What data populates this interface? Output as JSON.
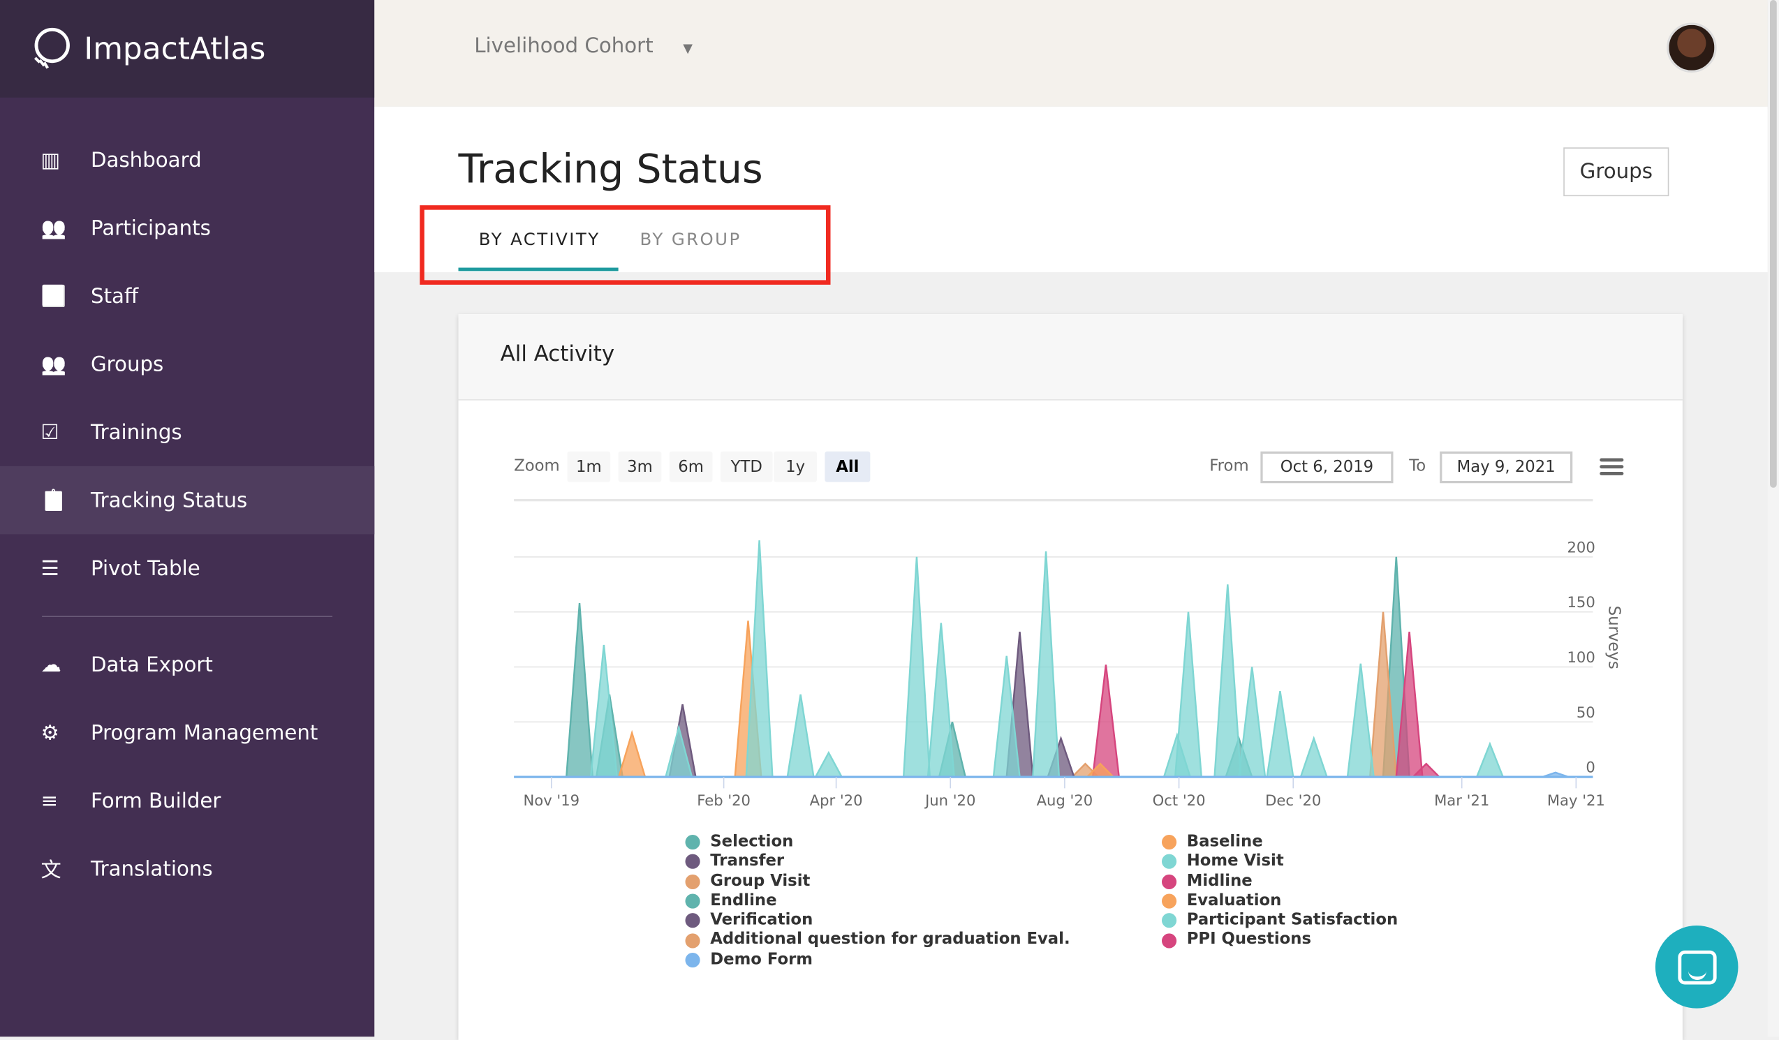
{
  "app": {
    "name": "ImpactAtlas"
  },
  "sidebar": {
    "items": [
      {
        "label": "Dashboard",
        "icon": "bar-chart-icon"
      },
      {
        "label": "Participants",
        "icon": "people-icon"
      },
      {
        "label": "Staff",
        "icon": "staff-icon"
      },
      {
        "label": "Groups",
        "icon": "people-icon"
      },
      {
        "label": "Trainings",
        "icon": "clipboard-check-icon"
      },
      {
        "label": "Tracking Status",
        "icon": "clipboard-icon",
        "active": true
      },
      {
        "label": "Pivot Table",
        "icon": "sliders-icon"
      },
      {
        "label": "Data Export",
        "icon": "cloud-download-icon"
      },
      {
        "label": "Program Management",
        "icon": "gear-icon"
      },
      {
        "label": "Form Builder",
        "icon": "list-icon"
      },
      {
        "label": "Translations",
        "icon": "translate-icon"
      }
    ]
  },
  "topbar": {
    "cohort": "Livelihood Cohort"
  },
  "page": {
    "title": "Tracking Status",
    "groups_button": "Groups",
    "tabs": [
      {
        "label": "BY ACTIVITY",
        "active": true
      },
      {
        "label": "BY GROUP"
      }
    ],
    "highlight_color": "#f02a20"
  },
  "card": {
    "title": "All Activity"
  },
  "controls": {
    "zoom_label": "Zoom",
    "zoom_options": [
      "1m",
      "3m",
      "6m",
      "YTD",
      "1y",
      "All"
    ],
    "selected": "All",
    "from_label": "From",
    "from": "Oct 6, 2019",
    "to_label": "To",
    "to": "May 9, 2021"
  },
  "chart_data": {
    "type": "area",
    "ylabel": "Surveys",
    "ylim": [
      0,
      200
    ],
    "yticks": [
      0,
      50,
      100,
      150,
      200
    ],
    "xlim": [
      "2019-10-12",
      "2021-05-10"
    ],
    "xticks": [
      {
        "date": "2019-11-01",
        "label": "Nov '19"
      },
      {
        "date": "2020-02-01",
        "label": "Feb '20"
      },
      {
        "date": "2020-04-01",
        "label": "Apr '20"
      },
      {
        "date": "2020-06-01",
        "label": "Jun '20"
      },
      {
        "date": "2020-08-01",
        "label": "Aug '20"
      },
      {
        "date": "2020-10-01",
        "label": "Oct '20"
      },
      {
        "date": "2020-12-01",
        "label": "Dec '20"
      },
      {
        "date": "2021-03-01",
        "label": "Mar '21"
      },
      {
        "date": "2021-05-01",
        "label": "May '21"
      }
    ],
    "grid": true,
    "legend_placement": "bottom",
    "series": [
      {
        "name": "Selection",
        "color": "#5fb3ad",
        "peaks": [
          [
            "2019-11-16",
            158
          ],
          [
            "2021-01-25",
            200
          ]
        ]
      },
      {
        "name": "Transfer",
        "color": "#6e5a7e",
        "peaks": [
          [
            "2020-01-10",
            66
          ],
          [
            "2020-07-08",
            132
          ]
        ]
      },
      {
        "name": "Group Visit",
        "color": "#e3a06e",
        "peaks": [
          [
            "2020-08-12",
            12
          ]
        ]
      },
      {
        "name": "Endline",
        "color": "#5fb3ad",
        "peaks": [
          [
            "2019-12-02",
            75
          ],
          [
            "2020-06-02",
            50
          ],
          [
            "2020-11-02",
            35
          ]
        ]
      },
      {
        "name": "Verification",
        "color": "#6e5a7e",
        "peaks": [
          [
            "2020-07-30",
            35
          ]
        ]
      },
      {
        "name": "Additional question for graduation Eval.",
        "color": "#e3a06e",
        "peaks": [
          [
            "2021-01-18",
            150
          ]
        ]
      },
      {
        "name": "Demo Form",
        "color": "#7cb5ec",
        "peaks": [
          [
            "2021-04-20",
            4
          ]
        ]
      },
      {
        "name": "Baseline",
        "color": "#f7a35c",
        "peaks": [
          [
            "2019-12-14",
            40
          ],
          [
            "2020-02-14",
            142
          ]
        ]
      },
      {
        "name": "Home Visit",
        "color": "#7fd6d3",
        "peaks": [
          [
            "2019-11-29",
            120
          ],
          [
            "2020-02-20",
            215
          ],
          [
            "2020-03-13",
            75
          ],
          [
            "2020-03-28",
            22
          ],
          [
            "2020-05-14",
            200
          ],
          [
            "2020-05-27",
            140
          ],
          [
            "2020-07-01",
            110
          ],
          [
            "2020-07-22",
            205
          ],
          [
            "2020-10-06",
            150
          ],
          [
            "2020-10-27",
            175
          ],
          [
            "2020-11-09",
            100
          ],
          [
            "2020-11-24",
            78
          ],
          [
            "2020-12-12",
            35
          ],
          [
            "2021-01-06",
            103
          ],
          [
            "2021-03-16",
            30
          ]
        ]
      },
      {
        "name": "Midline",
        "color": "#d6457e",
        "peaks": [
          [
            "2020-08-23",
            102
          ],
          [
            "2021-02-01",
            132
          ]
        ]
      },
      {
        "name": "Evaluation",
        "color": "#f7a35c",
        "peaks": [
          [
            "2020-08-20",
            12
          ]
        ]
      },
      {
        "name": "Participant Satisfaction",
        "color": "#7fd6d3",
        "peaks": [
          [
            "2020-09-30",
            38
          ],
          [
            "2020-01-08",
            45
          ]
        ]
      },
      {
        "name": "PPI Questions",
        "color": "#d6457e",
        "peaks": [
          [
            "2021-02-10",
            12
          ]
        ]
      }
    ]
  }
}
